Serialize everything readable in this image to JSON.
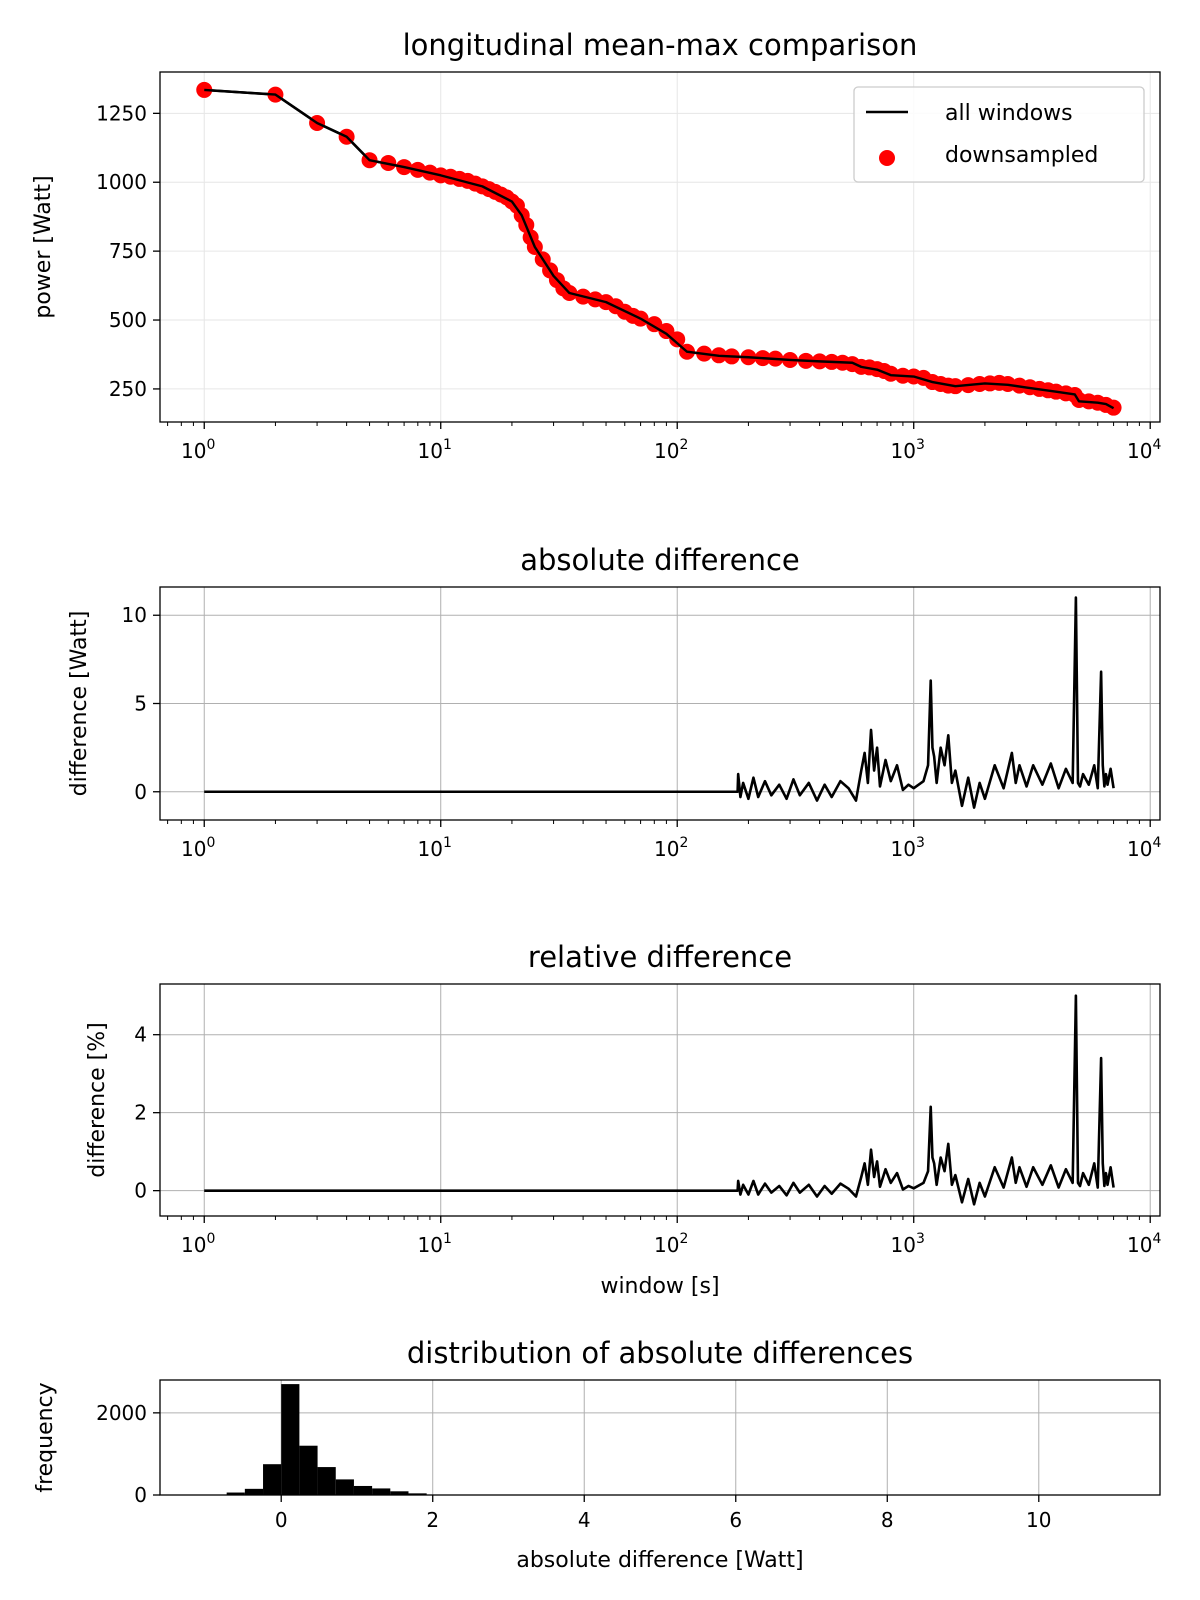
{
  "colors": {
    "line": "#000000",
    "marker": "#ff0000",
    "grid_light": "#e6e6e6",
    "grid": "#b0b0b0",
    "hist_bar": "#000000"
  },
  "chart_data": [
    {
      "type": "line",
      "title": "longitudinal mean-max comparison",
      "xlabel": "",
      "ylabel": "power [Watt]",
      "xscale": "log",
      "xlim": [
        0.65,
        11000
      ],
      "ylim": [
        130,
        1400
      ],
      "xticks": [
        1,
        10,
        100,
        1000,
        10000
      ],
      "xtick_labels": [
        {
          "base": "10",
          "exp": "0"
        },
        {
          "base": "10",
          "exp": "1"
        },
        {
          "base": "10",
          "exp": "2"
        },
        {
          "base": "10",
          "exp": "3"
        },
        {
          "base": "10",
          "exp": "4"
        }
      ],
      "yticks": [
        250,
        500,
        750,
        1000,
        1250
      ],
      "ytick_labels": [
        "250",
        "500",
        "750",
        "1000",
        "1250"
      ],
      "grid": true,
      "legend": {
        "location": "upper right",
        "entries": [
          {
            "label": "all windows",
            "kind": "line"
          },
          {
            "label": "downsampled",
            "kind": "marker"
          }
        ]
      },
      "series": [
        {
          "name": "all windows",
          "style": "line",
          "x": [
            1,
            2,
            3,
            4,
            5,
            7,
            10,
            15,
            20,
            22,
            25,
            30,
            35,
            50,
            70,
            90,
            110,
            150,
            200,
            300,
            400,
            550,
            600,
            700,
            800,
            1000,
            1200,
            1500,
            2000,
            2500,
            3000,
            4000,
            4800,
            5000,
            6000,
            6500,
            7000
          ],
          "y": [
            1335,
            1318,
            1215,
            1165,
            1080,
            1055,
            1025,
            985,
            930,
            880,
            765,
            660,
            598,
            565,
            505,
            450,
            385,
            370,
            365,
            355,
            350,
            345,
            330,
            320,
            300,
            295,
            275,
            260,
            270,
            265,
            255,
            240,
            230,
            205,
            200,
            195,
            180
          ]
        },
        {
          "name": "downsampled",
          "style": "scatter",
          "x": [
            1,
            2,
            3,
            4,
            5,
            6,
            7,
            8,
            9,
            10,
            11,
            12,
            13,
            14,
            15,
            16,
            17,
            18,
            19,
            20,
            21,
            22,
            23,
            24,
            25,
            27,
            29,
            31,
            33,
            35,
            40,
            45,
            50,
            55,
            60,
            65,
            70,
            80,
            90,
            100,
            110,
            130,
            150,
            170,
            200,
            230,
            260,
            300,
            350,
            400,
            450,
            500,
            550,
            600,
            650,
            700,
            750,
            800,
            900,
            1000,
            1100,
            1200,
            1300,
            1400,
            1500,
            1700,
            1900,
            2100,
            2300,
            2500,
            2800,
            3100,
            3400,
            3700,
            4000,
            4400,
            4800,
            5000,
            5500,
            6000,
            6500,
            7000
          ],
          "y": [
            1335,
            1318,
            1215,
            1165,
            1080,
            1070,
            1055,
            1045,
            1035,
            1025,
            1020,
            1012,
            1005,
            995,
            985,
            975,
            965,
            955,
            945,
            930,
            915,
            880,
            845,
            800,
            765,
            720,
            680,
            645,
            615,
            598,
            585,
            575,
            565,
            550,
            530,
            515,
            505,
            485,
            460,
            430,
            385,
            378,
            372,
            368,
            365,
            362,
            360,
            355,
            352,
            350,
            348,
            345,
            340,
            330,
            328,
            322,
            315,
            305,
            298,
            295,
            290,
            275,
            268,
            262,
            260,
            264,
            268,
            270,
            272,
            268,
            262,
            256,
            250,
            245,
            240,
            234,
            228,
            210,
            205,
            200,
            192,
            182
          ]
        }
      ]
    },
    {
      "type": "line",
      "title": "absolute difference",
      "xlabel": "",
      "ylabel": "difference [Watt]",
      "xscale": "log",
      "xlim": [
        0.65,
        11000
      ],
      "ylim": [
        -1.6,
        11.6
      ],
      "xticks": [
        1,
        10,
        100,
        1000,
        10000
      ],
      "xtick_labels": [
        {
          "base": "10",
          "exp": "0"
        },
        {
          "base": "10",
          "exp": "1"
        },
        {
          "base": "10",
          "exp": "2"
        },
        {
          "base": "10",
          "exp": "3"
        },
        {
          "base": "10",
          "exp": "4"
        }
      ],
      "yticks": [
        0,
        5,
        10
      ],
      "ytick_labels": [
        "0",
        "5",
        "10"
      ],
      "grid": true,
      "series": [
        {
          "style": "line",
          "x": [
            1,
            180,
            181,
            185,
            190,
            200,
            210,
            220,
            235,
            250,
            270,
            290,
            310,
            330,
            360,
            390,
            420,
            450,
            490,
            530,
            570,
            600,
            620,
            640,
            660,
            680,
            700,
            720,
            760,
            800,
            850,
            900,
            950,
            1000,
            1100,
            1150,
            1180,
            1200,
            1220,
            1250,
            1300,
            1350,
            1400,
            1450,
            1500,
            1600,
            1700,
            1800,
            1900,
            2000,
            2200,
            2400,
            2600,
            2700,
            2800,
            3000,
            3200,
            3500,
            3800,
            4100,
            4400,
            4700,
            4850,
            4950,
            5050,
            5200,
            5500,
            5800,
            6000,
            6200,
            6300,
            6400,
            6500,
            6600,
            6800,
            7000
          ],
          "y": [
            0,
            0,
            1.0,
            -0.3,
            0.5,
            -0.4,
            0.8,
            -0.3,
            0.6,
            -0.2,
            0.4,
            -0.4,
            0.7,
            -0.2,
            0.5,
            -0.5,
            0.4,
            -0.3,
            0.6,
            0.2,
            -0.5,
            1.2,
            2.2,
            0.5,
            3.5,
            1.2,
            2.5,
            0.3,
            1.8,
            0.6,
            1.5,
            0.1,
            0.4,
            0.2,
            0.6,
            1.5,
            6.3,
            2.5,
            2.0,
            0.5,
            2.5,
            1.5,
            3.2,
            0.5,
            1.2,
            -0.8,
            0.8,
            -0.9,
            0.5,
            -0.4,
            1.5,
            0.2,
            2.2,
            0.5,
            1.5,
            0.3,
            1.5,
            0.4,
            1.6,
            0.2,
            1.3,
            0.5,
            11.0,
            0.5,
            0.3,
            1.0,
            0.4,
            1.5,
            0.2,
            6.8,
            1.5,
            0.3,
            1.0,
            0.4,
            1.3,
            0.2
          ]
        }
      ]
    },
    {
      "type": "line",
      "title": "relative difference",
      "xlabel": "window [s]",
      "ylabel": "difference [%]",
      "xscale": "log",
      "xlim": [
        0.65,
        11000
      ],
      "ylim": [
        -0.65,
        5.3
      ],
      "xticks": [
        1,
        10,
        100,
        1000,
        10000
      ],
      "xtick_labels": [
        {
          "base": "10",
          "exp": "0"
        },
        {
          "base": "10",
          "exp": "1"
        },
        {
          "base": "10",
          "exp": "2"
        },
        {
          "base": "10",
          "exp": "3"
        },
        {
          "base": "10",
          "exp": "4"
        }
      ],
      "yticks": [
        0,
        2,
        4
      ],
      "ytick_labels": [
        "0",
        "2",
        "4"
      ],
      "grid": true,
      "series": [
        {
          "style": "line",
          "x": [
            1,
            180,
            181,
            185,
            190,
            200,
            210,
            220,
            235,
            250,
            270,
            290,
            310,
            330,
            360,
            390,
            420,
            450,
            490,
            530,
            570,
            600,
            620,
            640,
            660,
            680,
            700,
            720,
            760,
            800,
            850,
            900,
            950,
            1000,
            1100,
            1150,
            1180,
            1200,
            1220,
            1250,
            1300,
            1350,
            1400,
            1450,
            1500,
            1600,
            1700,
            1800,
            1900,
            2000,
            2200,
            2400,
            2600,
            2700,
            2800,
            3000,
            3200,
            3500,
            3800,
            4100,
            4400,
            4700,
            4850,
            4950,
            5050,
            5200,
            5500,
            5800,
            6000,
            6200,
            6300,
            6400,
            6500,
            6600,
            6800,
            7000
          ],
          "y": [
            0,
            0,
            0.25,
            -0.1,
            0.15,
            -0.1,
            0.25,
            -0.1,
            0.18,
            -0.05,
            0.12,
            -0.12,
            0.2,
            -0.05,
            0.15,
            -0.15,
            0.12,
            -0.08,
            0.18,
            0.05,
            -0.15,
            0.35,
            0.7,
            0.15,
            1.05,
            0.35,
            0.75,
            0.1,
            0.55,
            0.2,
            0.45,
            0.03,
            0.12,
            0.06,
            0.2,
            0.5,
            2.15,
            0.85,
            0.7,
            0.15,
            0.85,
            0.5,
            1.2,
            0.15,
            0.4,
            -0.3,
            0.3,
            -0.35,
            0.2,
            -0.15,
            0.6,
            0.08,
            0.85,
            0.2,
            0.6,
            0.1,
            0.6,
            0.15,
            0.65,
            0.08,
            0.55,
            0.2,
            5.0,
            0.2,
            0.12,
            0.45,
            0.15,
            0.7,
            0.08,
            3.4,
            0.7,
            0.12,
            0.45,
            0.15,
            0.6,
            0.08
          ]
        }
      ]
    },
    {
      "type": "bar",
      "title": "distribution of absolute differences",
      "xlabel": "absolute difference [Watt]",
      "ylabel": "frequency",
      "xscale": "linear",
      "xlim": [
        -1.6,
        11.6
      ],
      "ylim": [
        0,
        2800
      ],
      "xticks": [
        0,
        2,
        4,
        6,
        8,
        10
      ],
      "xtick_labels": [
        "0",
        "2",
        "4",
        "6",
        "8",
        "10"
      ],
      "yticks": [
        0,
        2000
      ],
      "ytick_labels": [
        "0",
        "2000"
      ],
      "grid": true,
      "bin_width": 0.24,
      "bin_starts": [
        -0.72,
        -0.48,
        -0.24,
        0.0,
        0.24,
        0.48,
        0.72,
        0.96,
        1.2,
        1.44,
        1.68
      ],
      "values": [
        60,
        150,
        750,
        2700,
        1200,
        680,
        380,
        220,
        160,
        90,
        40
      ]
    }
  ]
}
